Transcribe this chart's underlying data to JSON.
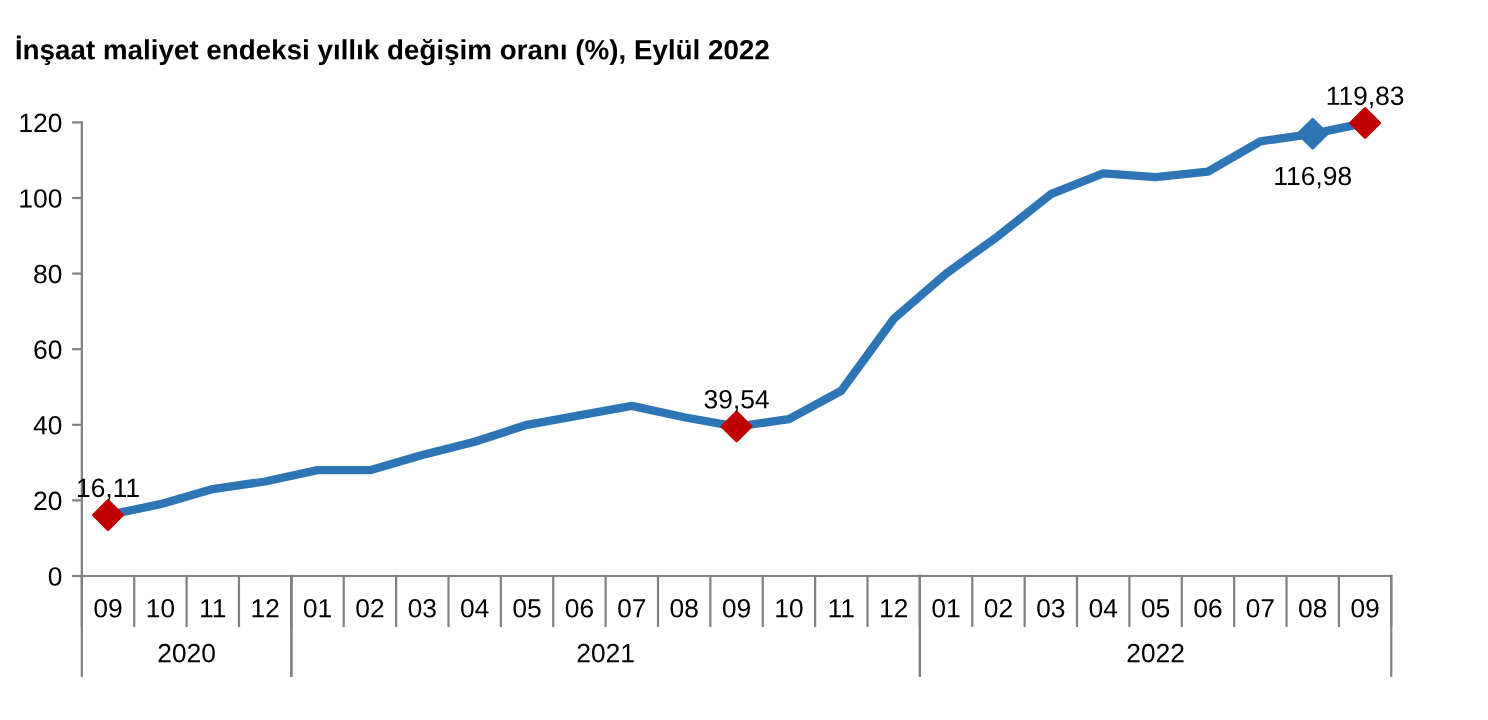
{
  "chart_data": {
    "type": "line",
    "title": "İnşaat maliyet endeksi yıllık değişim oranı (%), Eylül 2022",
    "categories": [
      "09",
      "10",
      "11",
      "12",
      "01",
      "02",
      "03",
      "04",
      "05",
      "06",
      "07",
      "08",
      "09",
      "10",
      "11",
      "12",
      "01",
      "02",
      "03",
      "04",
      "05",
      "06",
      "07",
      "08",
      "09"
    ],
    "annotations": [
      "2020",
      "2021",
      "2022"
    ],
    "series": [
      {
        "color": "#2e75b6",
        "values": [
          16.11,
          19,
          23,
          25,
          28,
          28,
          32,
          35.5,
          40,
          42.5,
          45,
          42,
          39.54,
          41.5,
          49,
          68,
          80,
          90,
          101,
          106.5,
          105.5,
          107,
          115,
          116.98,
          119.83
        ]
      },
      {
        "type": "scatter",
        "marker": "diamond",
        "colors": [
          "#c00000",
          null,
          null,
          null,
          null,
          null,
          null,
          null,
          null,
          null,
          null,
          null,
          "#c00000",
          null,
          null,
          null,
          null,
          null,
          null,
          null,
          null,
          null,
          null,
          "#2e75b6",
          "#c00000"
        ],
        "values": [
          16.11,
          null,
          null,
          null,
          null,
          null,
          null,
          null,
          null,
          null,
          null,
          null,
          39.54,
          null,
          null,
          null,
          null,
          null,
          null,
          null,
          null,
          null,
          null,
          116.98,
          119.83
        ],
        "value_labels": [
          "16,11",
          null,
          null,
          null,
          null,
          null,
          null,
          null,
          null,
          null,
          null,
          null,
          "39,54",
          null,
          null,
          null,
          null,
          null,
          null,
          null,
          null,
          null,
          null,
          "116,98",
          "119,83"
        ]
      }
    ],
    "ylim": [
      0,
      120
    ],
    "yticks": [
      0,
      20,
      40,
      60,
      80,
      100,
      120
    ],
    "grid": false,
    "legend": false
  }
}
